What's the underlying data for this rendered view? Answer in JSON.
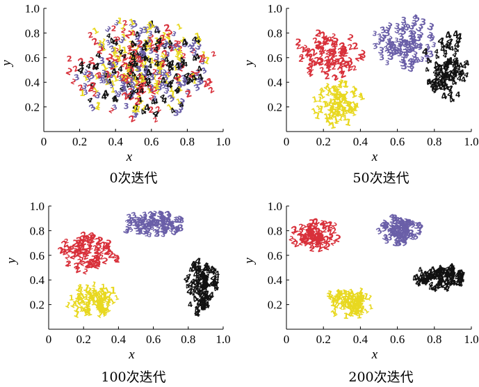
{
  "chart_data": [
    {
      "type": "scatter",
      "caption": "0次迭代",
      "xlabel": "x",
      "ylabel": "y",
      "xlim": [
        0,
        1.0
      ],
      "ylim": [
        0,
        1.0
      ],
      "xticks": [
        "0",
        "0.2",
        "0.4",
        "0.6",
        "0.8",
        "1.0"
      ],
      "yticks": [
        "0.2",
        "0.4",
        "0.6",
        "0.8",
        "1.0"
      ],
      "series": [
        {
          "marker": "1",
          "color": "#e8d820",
          "region": {
            "cx": 0.55,
            "cy": 0.5,
            "rx": 0.42,
            "ry": 0.42
          }
        },
        {
          "marker": "2",
          "color": "#d8303a",
          "region": {
            "cx": 0.55,
            "cy": 0.5,
            "rx": 0.42,
            "ry": 0.42
          }
        },
        {
          "marker": "3",
          "color": "#6a5fa8",
          "region": {
            "cx": 0.55,
            "cy": 0.5,
            "rx": 0.42,
            "ry": 0.42
          }
        },
        {
          "marker": "4",
          "color": "#111111",
          "region": {
            "cx": 0.55,
            "cy": 0.5,
            "rx": 0.42,
            "ry": 0.42
          }
        }
      ]
    },
    {
      "type": "scatter",
      "caption": "50次迭代",
      "xlabel": "x",
      "ylabel": "y",
      "xlim": [
        0,
        1.0
      ],
      "ylim": [
        0,
        1.0
      ],
      "xticks": [
        "0",
        "0.2",
        "0.4",
        "0.6",
        "0.8",
        "1.0"
      ],
      "yticks": [
        "0.2",
        "0.4",
        "0.6",
        "0.8",
        "1.0"
      ],
      "series": [
        {
          "marker": "1",
          "color": "#e8d820",
          "region": {
            "cx": 0.28,
            "cy": 0.22,
            "rx": 0.14,
            "ry": 0.18
          }
        },
        {
          "marker": "2",
          "color": "#d8303a",
          "region": {
            "cx": 0.24,
            "cy": 0.62,
            "rx": 0.2,
            "ry": 0.22
          }
        },
        {
          "marker": "3",
          "color": "#6a5fa8",
          "region": {
            "cx": 0.64,
            "cy": 0.72,
            "rx": 0.18,
            "ry": 0.22
          }
        },
        {
          "marker": "4",
          "color": "#111111",
          "region": {
            "cx": 0.86,
            "cy": 0.52,
            "rx": 0.12,
            "ry": 0.32
          }
        }
      ]
    },
    {
      "type": "scatter",
      "caption": "100次迭代",
      "xlabel": "x",
      "ylabel": "y",
      "xlim": [
        0,
        1.0
      ],
      "ylim": [
        0,
        1.0
      ],
      "xticks": [
        "0",
        "0.2",
        "0.4",
        "0.6",
        "0.8",
        "1.0"
      ],
      "yticks": [
        "0.2",
        "0.4",
        "0.6",
        "0.8",
        "1.0"
      ],
      "series": [
        {
          "marker": "1",
          "color": "#e8d820",
          "region": {
            "cx": 0.25,
            "cy": 0.22,
            "rx": 0.16,
            "ry": 0.14
          }
        },
        {
          "marker": "2",
          "color": "#d8303a",
          "region": {
            "cx": 0.24,
            "cy": 0.62,
            "rx": 0.18,
            "ry": 0.16
          }
        },
        {
          "marker": "3",
          "color": "#6a5fa8",
          "region": {
            "cx": 0.6,
            "cy": 0.86,
            "rx": 0.2,
            "ry": 0.1
          }
        },
        {
          "marker": "4",
          "color": "#111111",
          "region": {
            "cx": 0.88,
            "cy": 0.35,
            "rx": 0.1,
            "ry": 0.24
          }
        }
      ]
    },
    {
      "type": "scatter",
      "caption": "200次迭代",
      "xlabel": "x",
      "ylabel": "y",
      "xlim": [
        0,
        1.0
      ],
      "ylim": [
        0,
        1.0
      ],
      "xticks": [
        "0",
        "0.2",
        "0.4",
        "0.6",
        "0.8",
        "1.0"
      ],
      "yticks": [
        "0.2",
        "0.4",
        "0.6",
        "0.8",
        "1.0"
      ],
      "series": [
        {
          "marker": "1",
          "color": "#e8d820",
          "region": {
            "cx": 0.34,
            "cy": 0.22,
            "rx": 0.13,
            "ry": 0.12
          }
        },
        {
          "marker": "2",
          "color": "#d8303a",
          "region": {
            "cx": 0.16,
            "cy": 0.76,
            "rx": 0.14,
            "ry": 0.12
          }
        },
        {
          "marker": "3",
          "color": "#6a5fa8",
          "region": {
            "cx": 0.62,
            "cy": 0.8,
            "rx": 0.12,
            "ry": 0.12
          }
        },
        {
          "marker": "4",
          "color": "#111111",
          "region": {
            "cx": 0.84,
            "cy": 0.42,
            "rx": 0.16,
            "ry": 0.1
          }
        }
      ]
    }
  ]
}
